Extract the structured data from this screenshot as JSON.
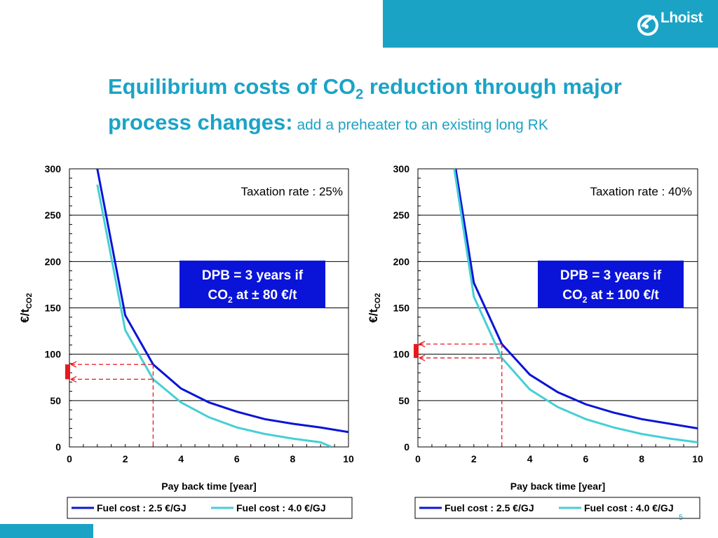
{
  "slide": {
    "title_line1_a": "Equilibrium costs of CO",
    "title_line1_sub": "2",
    "title_line1_b": " reduction through major",
    "title_line2_a": "process changes:",
    "title_line2_b": " add a preheater to an existing long RK",
    "logo_text": "Lhoist",
    "page_number": "5"
  },
  "colors": {
    "accent": "#1ba3c6",
    "series1": "#0a14d8",
    "series2": "#46cfd4",
    "box": "#0a14d8",
    "marker": "#e8191e"
  },
  "chart_data": [
    {
      "type": "line",
      "annotation": "Taxation rate : 25%",
      "box_line1": "DPB = 3 years if",
      "box_line2_a": "CO",
      "box_line2_sub": "2",
      "box_line2_b": " at ± 80 €/t",
      "ylabel_a": "€/t",
      "ylabel_sub": "CO2",
      "xlabel": "Pay back time [year]",
      "xlim": [
        0,
        10
      ],
      "ylim": [
        0,
        300
      ],
      "xticks": [
        "0",
        "2",
        "4",
        "6",
        "8",
        "10"
      ],
      "yticks": [
        "0",
        "50",
        "100",
        "150",
        "200",
        "250",
        "300"
      ],
      "grid": "horizontal",
      "dpb_year": 3,
      "marker_range": [
        73,
        89
      ],
      "series": [
        {
          "name": "Fuel cost : 2.5 €/GJ",
          "x": [
            1,
            2,
            3,
            4,
            5,
            6,
            7,
            8,
            9,
            10
          ],
          "y": [
            300,
            142,
            89,
            63,
            48,
            38,
            30,
            25,
            21,
            16
          ]
        },
        {
          "name": "Fuel cost : 4.0 €/GJ",
          "x": [
            1,
            2,
            3,
            4,
            5,
            6,
            7,
            8,
            9,
            9.4
          ],
          "y": [
            283,
            126,
            73,
            48,
            32,
            21,
            14,
            9,
            5,
            0
          ]
        }
      ]
    },
    {
      "type": "line",
      "annotation": "Taxation rate : 40%",
      "box_line1": "DPB = 3 years if",
      "box_line2_a": "CO",
      "box_line2_sub": "2",
      "box_line2_b": " at ± 100 €/t",
      "ylabel_a": "€/t",
      "ylabel_sub": "CO2",
      "xlabel": "Pay back time [year]",
      "xlim": [
        0,
        10
      ],
      "ylim": [
        0,
        300
      ],
      "xticks": [
        "0",
        "2",
        "4",
        "6",
        "8",
        "10"
      ],
      "yticks": [
        "0",
        "50",
        "100",
        "150",
        "200",
        "250",
        "300"
      ],
      "grid": "horizontal",
      "dpb_year": 3,
      "marker_range": [
        96,
        111
      ],
      "series": [
        {
          "name": "Fuel cost : 2.5 €/GJ",
          "x": [
            1.35,
            2,
            3,
            4,
            5,
            6,
            7,
            8,
            9,
            10
          ],
          "y": [
            300,
            177,
            111,
            78,
            59,
            46,
            37,
            30,
            25,
            20
          ]
        },
        {
          "name": "Fuel cost : 4.0 €/GJ",
          "x": [
            1.3,
            2,
            3,
            4,
            5,
            6,
            7,
            8,
            9,
            10
          ],
          "y": [
            300,
            162,
            96,
            62,
            43,
            30,
            21,
            14,
            9,
            5
          ]
        }
      ]
    }
  ]
}
